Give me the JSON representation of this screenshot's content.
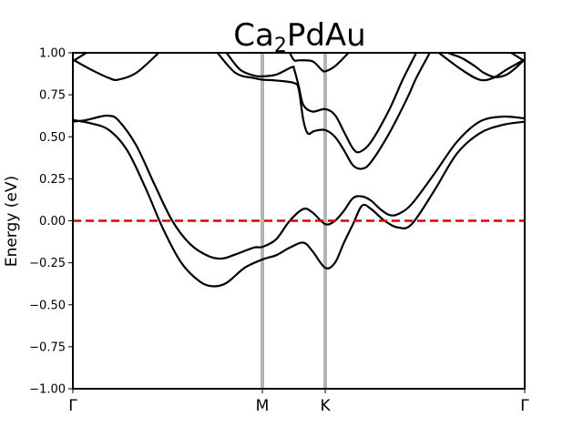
{
  "chart_data": {
    "type": "line",
    "title": {
      "main": "Ca",
      "sub": "2",
      "rest": "PdAu"
    },
    "xlabel": "",
    "ylabel": "Energy (eV)",
    "ylim": [
      -1.0,
      1.0
    ],
    "yticks": [
      "−1.00",
      "−0.75",
      "−0.50",
      "−0.25",
      "0.00",
      "0.25",
      "0.50",
      "0.75",
      "1.00"
    ],
    "ytick_values": [
      -1.0,
      -0.75,
      -0.5,
      -0.25,
      0.0,
      0.25,
      0.5,
      0.75,
      1.0
    ],
    "xlim": [
      0,
      1
    ],
    "kpoints": [
      {
        "label": "Γ",
        "x": 0.0
      },
      {
        "label": "M",
        "x": 0.4194
      },
      {
        "label": "K",
        "x": 0.5585
      },
      {
        "label": "Γ",
        "x": 1.0
      }
    ],
    "fermi_level": 0.0,
    "grid": false,
    "colors": {
      "bands": "#000000",
      "fermi": "#e00000",
      "kline": "#b3b3b3"
    },
    "series": [
      {
        "points": [
          [
            0.0,
            0.59
          ],
          [
            0.03,
            0.6
          ],
          [
            0.06,
            0.62
          ],
          [
            0.08,
            0.625
          ],
          [
            0.1,
            0.6
          ],
          [
            0.14,
            0.45
          ],
          [
            0.18,
            0.22
          ],
          [
            0.22,
            0.0
          ],
          [
            0.26,
            -0.14
          ],
          [
            0.3,
            -0.21
          ],
          [
            0.33,
            -0.225
          ],
          [
            0.36,
            -0.2
          ],
          [
            0.4,
            -0.16
          ],
          [
            0.42,
            -0.155
          ],
          [
            0.45,
            -0.11
          ],
          [
            0.48,
            0.0
          ],
          [
            0.51,
            0.07
          ],
          [
            0.53,
            0.05
          ],
          [
            0.5585,
            -0.02
          ],
          [
            0.58,
            0.0
          ],
          [
            0.6,
            0.06
          ],
          [
            0.62,
            0.135
          ],
          [
            0.64,
            0.145
          ],
          [
            0.66,
            0.12
          ],
          [
            0.68,
            0.07
          ],
          [
            0.7,
            0.035
          ],
          [
            0.72,
            0.04
          ],
          [
            0.75,
            0.1
          ],
          [
            0.8,
            0.28
          ],
          [
            0.85,
            0.47
          ],
          [
            0.9,
            0.59
          ],
          [
            0.95,
            0.62
          ],
          [
            1.0,
            0.61
          ]
        ]
      },
      {
        "points": [
          [
            0.0,
            0.6
          ],
          [
            0.04,
            0.58
          ],
          [
            0.08,
            0.54
          ],
          [
            0.12,
            0.42
          ],
          [
            0.16,
            0.2
          ],
          [
            0.2,
            -0.05
          ],
          [
            0.24,
            -0.25
          ],
          [
            0.28,
            -0.36
          ],
          [
            0.31,
            -0.39
          ],
          [
            0.34,
            -0.37
          ],
          [
            0.38,
            -0.28
          ],
          [
            0.42,
            -0.23
          ],
          [
            0.45,
            -0.205
          ],
          [
            0.48,
            -0.16
          ],
          [
            0.51,
            -0.13
          ],
          [
            0.53,
            -0.18
          ],
          [
            0.5585,
            -0.28
          ],
          [
            0.58,
            -0.25
          ],
          [
            0.6,
            -0.13
          ],
          [
            0.62,
            -0.02
          ],
          [
            0.64,
            0.09
          ],
          [
            0.66,
            0.07
          ],
          [
            0.69,
            0.0
          ],
          [
            0.72,
            -0.04
          ],
          [
            0.75,
            -0.02
          ],
          [
            0.8,
            0.18
          ],
          [
            0.85,
            0.4
          ],
          [
            0.9,
            0.52
          ],
          [
            0.95,
            0.57
          ],
          [
            1.0,
            0.59
          ]
        ]
      },
      {
        "points": [
          [
            0.0,
            0.96
          ],
          [
            0.04,
            0.9
          ],
          [
            0.08,
            0.85
          ],
          [
            0.1,
            0.84
          ],
          [
            0.14,
            0.88
          ],
          [
            0.19,
            1.0
          ]
        ]
      },
      {
        "points": [
          [
            0.0,
            0.95
          ],
          [
            0.03,
            1.0
          ]
        ]
      },
      {
        "points": [
          [
            0.97,
            1.0
          ],
          [
            1.0,
            0.95
          ]
        ]
      },
      {
        "points": [
          [
            0.81,
            1.0
          ],
          [
            0.86,
            0.9
          ],
          [
            0.9,
            0.84
          ],
          [
            0.93,
            0.85
          ],
          [
            0.96,
            0.9
          ],
          [
            1.0,
            0.96
          ]
        ]
      },
      {
        "points": [
          [
            0.32,
            1.0
          ],
          [
            0.36,
            0.88
          ],
          [
            0.4,
            0.85
          ],
          [
            0.42,
            0.84
          ],
          [
            0.45,
            0.835
          ],
          [
            0.49,
            0.82
          ],
          [
            0.5,
            0.78
          ],
          [
            0.51,
            0.6
          ],
          [
            0.52,
            0.52
          ],
          [
            0.535,
            0.535
          ],
          [
            0.5585,
            0.54
          ],
          [
            0.58,
            0.5
          ],
          [
            0.6,
            0.42
          ],
          [
            0.62,
            0.33
          ],
          [
            0.64,
            0.31
          ],
          [
            0.66,
            0.35
          ],
          [
            0.7,
            0.52
          ],
          [
            0.74,
            0.73
          ],
          [
            0.76,
            0.85
          ],
          [
            0.79,
            1.0
          ]
        ]
      },
      {
        "points": [
          [
            0.34,
            1.0
          ],
          [
            0.37,
            0.9
          ],
          [
            0.4,
            0.865
          ],
          [
            0.42,
            0.86
          ],
          [
            0.45,
            0.87
          ],
          [
            0.485,
            0.915
          ],
          [
            0.49,
            0.9
          ],
          [
            0.5,
            0.8
          ],
          [
            0.51,
            0.69
          ],
          [
            0.53,
            0.65
          ],
          [
            0.5585,
            0.665
          ],
          [
            0.58,
            0.63
          ],
          [
            0.6,
            0.53
          ],
          [
            0.62,
            0.43
          ],
          [
            0.635,
            0.41
          ],
          [
            0.66,
            0.47
          ],
          [
            0.7,
            0.66
          ],
          [
            0.73,
            0.84
          ],
          [
            0.76,
            1.0
          ]
        ]
      },
      {
        "points": [
          [
            0.48,
            1.0
          ],
          [
            0.49,
            0.955
          ],
          [
            0.5,
            0.955
          ],
          [
            0.53,
            0.95
          ],
          [
            0.55,
            0.9
          ],
          [
            0.5585,
            0.89
          ],
          [
            0.58,
            0.92
          ],
          [
            0.61,
            1.0
          ]
        ]
      },
      {
        "points": [
          [
            0.83,
            1.0
          ],
          [
            0.84,
            0.99
          ],
          [
            0.86,
            0.97
          ],
          [
            0.89,
            0.92
          ],
          [
            0.91,
            0.88
          ],
          [
            0.935,
            0.855
          ],
          [
            0.96,
            0.87
          ],
          [
            0.98,
            0.91
          ],
          [
            1.0,
            0.96
          ]
        ]
      }
    ]
  }
}
